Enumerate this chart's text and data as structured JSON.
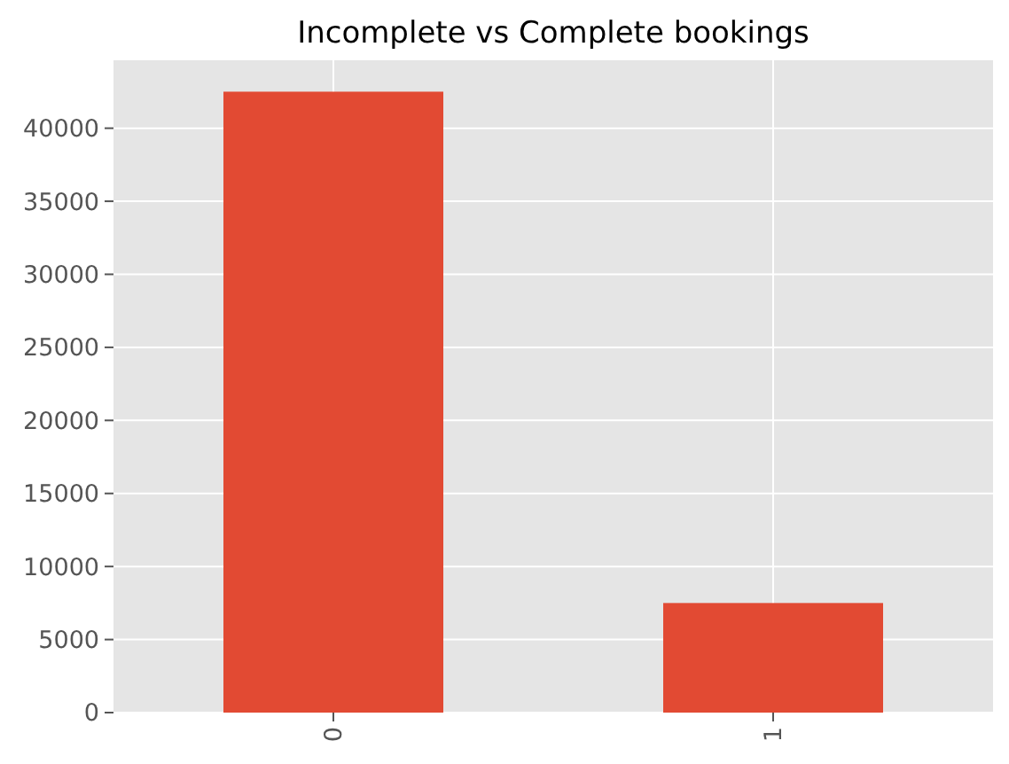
{
  "chart_data": {
    "type": "bar",
    "title": "Incomplete vs Complete bookings",
    "categories": [
      "0",
      "1"
    ],
    "values": [
      42500,
      7500
    ],
    "color": "#e24a33",
    "ylim": [
      0,
      44650
    ],
    "yticks": [
      0,
      5000,
      10000,
      15000,
      20000,
      25000,
      30000,
      35000,
      40000
    ],
    "grid": true
  }
}
